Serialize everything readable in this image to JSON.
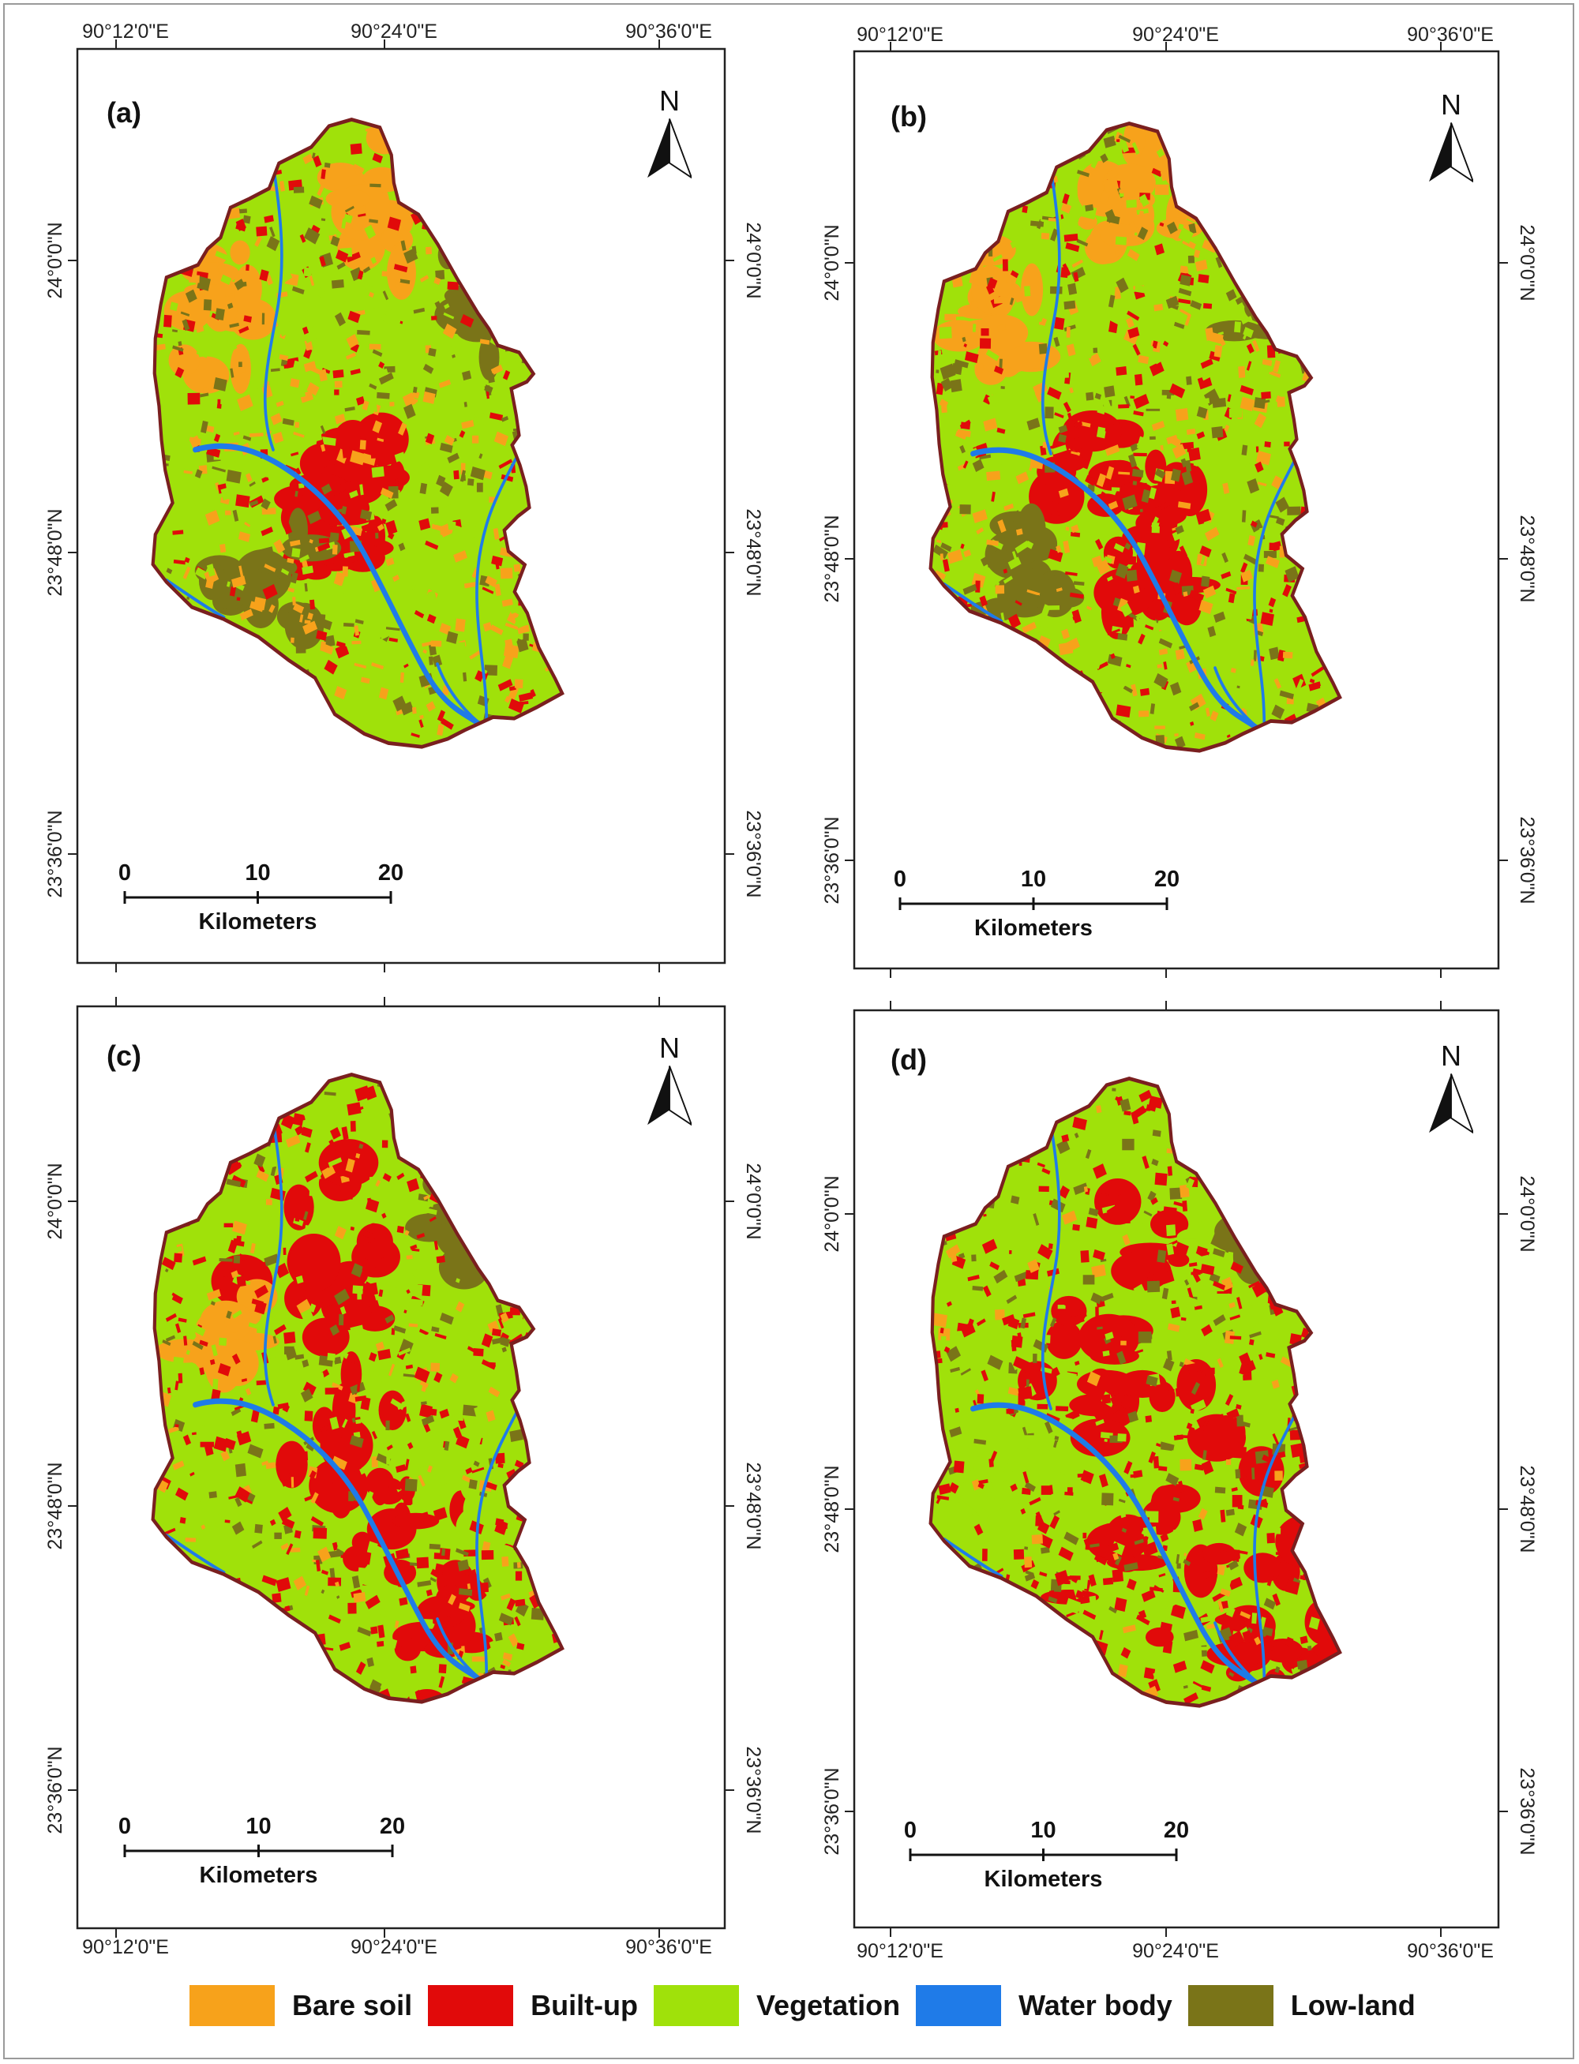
{
  "colors": {
    "bare_soil": "#F7A21B",
    "built_up": "#E10A0A",
    "vegetation": "#A0E10A",
    "water_body": "#1F7BE8",
    "low_land": "#7A7418",
    "boundary": "#7A1F1F"
  },
  "lon_labels": [
    "90°12'0\"E",
    "90°24'0\"E",
    "90°36'0\"E"
  ],
  "lat_labels": [
    "24°0'0\"N",
    "23°48'0\"N",
    "23°36'0\"N"
  ],
  "north_label": "N",
  "scale": {
    "ticks": [
      "0",
      "10",
      "20"
    ],
    "unit": "Kilometers"
  },
  "panels": [
    {
      "label": "(a)",
      "lon_labels_position": "top"
    },
    {
      "label": "(b)",
      "lon_labels_position": "top"
    },
    {
      "label": "(c)",
      "lon_labels_position": "bottom"
    },
    {
      "label": "(d)",
      "lon_labels_position": "bottom"
    }
  ],
  "legend": [
    {
      "label": "Bare soil",
      "color": "#F7A21B"
    },
    {
      "label": "Built-up",
      "color": "#E10A0A"
    },
    {
      "label": "Vegetation",
      "color": "#A0E10A"
    },
    {
      "label": "Water body",
      "color": "#1F7BE8"
    },
    {
      "label": "Low-land",
      "color": "#7A7418"
    }
  ]
}
